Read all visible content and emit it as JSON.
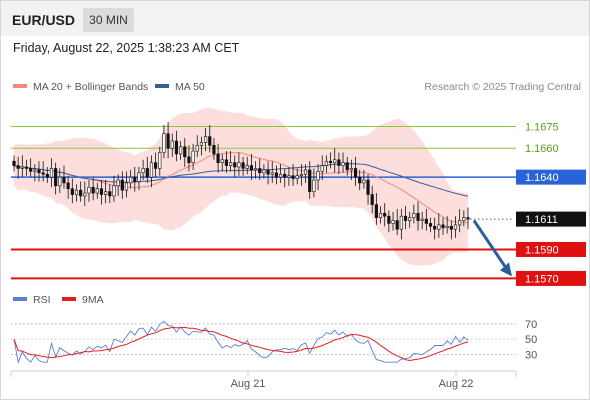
{
  "header": {
    "pair": "EUR/USD",
    "timeframe": "30 MIN",
    "datetime": "Friday, August 22, 2025 1:38:23 AM CET"
  },
  "price_panel": {
    "legend": [
      {
        "label": "MA 20 + Bollinger Bands",
        "color": "#f08a80"
      },
      {
        "label": "MA 50",
        "color": "#3a5f96"
      }
    ],
    "copyright": "Research © 2025 Trading Central"
  },
  "rsi_panel": {
    "legend": [
      {
        "label": "RSI",
        "color": "#5b7fd6"
      },
      {
        "label": "9MA",
        "color": "#e02020"
      }
    ]
  },
  "colors": {
    "resistance": "#8cc63f",
    "pivot": "#2a63d8",
    "support": "#e01010",
    "current": "#111111",
    "bull": "#ffffff",
    "bear": "#111111",
    "arrow": "#2b5c9e",
    "band": "#fbd3d0"
  },
  "chart_data": [
    {
      "type": "candlestick",
      "title": "EUR/USD 30 MIN",
      "y_axis": {
        "min": 1.1562,
        "max": 1.1694
      },
      "x_ticks": [
        "Aug 21",
        "Aug 22"
      ],
      "levels": [
        {
          "label": "1.1675",
          "value": 1.1675,
          "kind": "resistance"
        },
        {
          "label": "1.1660",
          "value": 1.166,
          "kind": "resistance"
        },
        {
          "label": "1.1640",
          "value": 1.164,
          "kind": "pivot"
        },
        {
          "label": "1.1611",
          "value": 1.1611,
          "kind": "current"
        },
        {
          "label": "1.1590",
          "value": 1.159,
          "kind": "support"
        },
        {
          "label": "1.1570",
          "value": 1.157,
          "kind": "support"
        }
      ],
      "forecast": {
        "from": 1.161,
        "to": 1.157,
        "direction": "down"
      },
      "closes": [
        1.1648,
        1.1646,
        1.1647,
        1.1646,
        1.1644,
        1.1645,
        1.1643,
        1.1642,
        1.164,
        1.1646,
        1.1634,
        1.164,
        1.1636,
        1.1632,
        1.1628,
        1.1631,
        1.1627,
        1.1629,
        1.1633,
        1.1629,
        1.1632,
        1.1628,
        1.163,
        1.1627,
        1.1634,
        1.1638,
        1.1631,
        1.1636,
        1.164,
        1.1637,
        1.1643,
        1.1646,
        1.164,
        1.165,
        1.1646,
        1.1657,
        1.167,
        1.166,
        1.1665,
        1.1656,
        1.1661,
        1.1654,
        1.165,
        1.1658,
        1.1662,
        1.1664,
        1.1668,
        1.1662,
        1.1656,
        1.165,
        1.1652,
        1.1648,
        1.165,
        1.1647,
        1.165,
        1.1646,
        1.1648,
        1.1645,
        1.1646,
        1.1643,
        1.1645,
        1.1642,
        1.1643,
        1.164,
        1.1642,
        1.164,
        1.1641,
        1.1639,
        1.1641,
        1.1642,
        1.1645,
        1.163,
        1.1638,
        1.1644,
        1.1648,
        1.1651,
        1.165,
        1.1652,
        1.1648,
        1.165,
        1.1645,
        1.1646,
        1.164,
        1.1636,
        1.1638,
        1.1628,
        1.1621,
        1.1612,
        1.1615,
        1.1613,
        1.1608,
        1.161,
        1.1604,
        1.1613,
        1.161,
        1.1612,
        1.1615,
        1.161,
        1.1611,
        1.1608,
        1.1606,
        1.1604,
        1.1607,
        1.1605,
        1.1606,
        1.1604,
        1.1607,
        1.161,
        1.1612,
        1.1611
      ]
    },
    {
      "type": "line",
      "title": "RSI",
      "y_axis": {
        "min": 15,
        "max": 88
      },
      "y_ticks": [
        70,
        50,
        30
      ],
      "series": [
        {
          "name": "RSI",
          "color": "#5b7fd6"
        },
        {
          "name": "9MA",
          "color": "#e02020"
        }
      ]
    }
  ]
}
